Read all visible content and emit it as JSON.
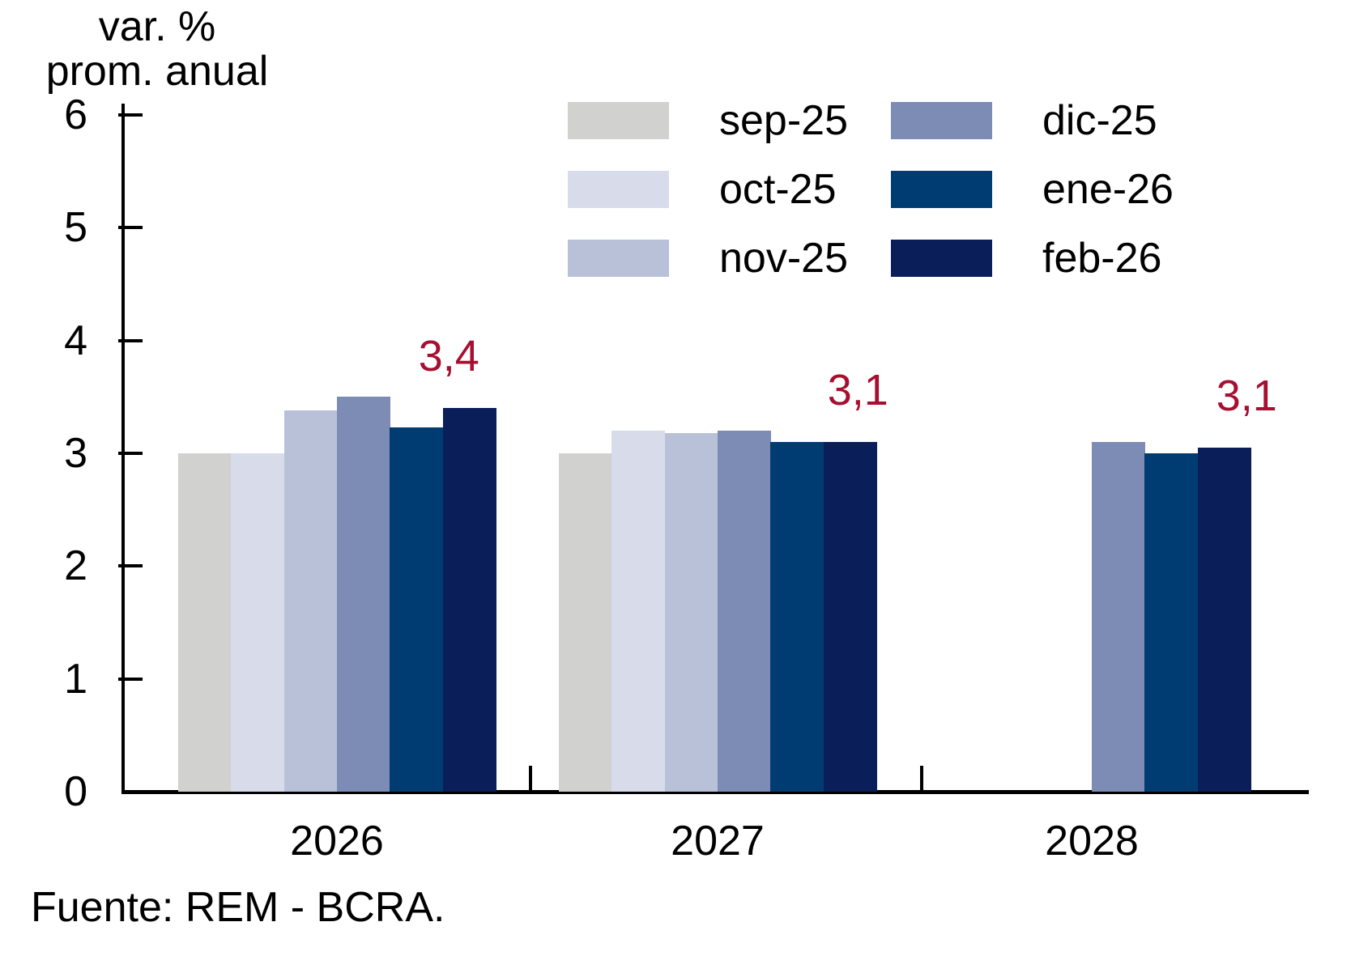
{
  "header": {
    "line1": "var. %",
    "line2": "prom. anual"
  },
  "source_text": "Fuente: REM - BCRA.",
  "colors": {
    "axis": "#000000",
    "data_label": "#A60F2F",
    "background": "#FFFFFF"
  },
  "legend": {
    "columns": [
      [
        "sep-25",
        "oct-25",
        "nov-25"
      ],
      [
        "dic-25",
        "ene-26",
        "feb-26"
      ]
    ]
  },
  "chart_data": {
    "type": "bar",
    "title": "",
    "ylabel": "var. % prom. anual",
    "xlabel": "",
    "categories": [
      "2026",
      "2027",
      "2028"
    ],
    "series": [
      {
        "name": "sep-25",
        "color": "#D1D1D0",
        "values": [
          3.0,
          3.0,
          null
        ]
      },
      {
        "name": "oct-25",
        "color": "#D8DBE9",
        "values": [
          3.0,
          3.2,
          null
        ]
      },
      {
        "name": "nov-25",
        "color": "#B9C1D9",
        "values": [
          3.38,
          3.18,
          null
        ]
      },
      {
        "name": "dic-25",
        "color": "#7D8CB5",
        "values": [
          3.5,
          3.2,
          3.1
        ]
      },
      {
        "name": "ene-26",
        "color": "#003C72",
        "values": [
          3.23,
          3.1,
          3.0
        ]
      },
      {
        "name": "feb-26",
        "color": "#0A1E59",
        "values": [
          3.4,
          3.1,
          3.05
        ]
      }
    ],
    "bar_labels": [
      {
        "text": "3,4",
        "series": "feb-26",
        "category": "2026",
        "dx": -25
      },
      {
        "text": "3,1",
        "series": "feb-26",
        "category": "2027",
        "dx": 10
      },
      {
        "text": "3,1",
        "series": "feb-26",
        "category": "2028",
        "dx": 28
      }
    ],
    "label_color": "#A60F2F",
    "ylim": [
      0,
      6
    ],
    "yticks": [
      0,
      1,
      2,
      3,
      4,
      5,
      6
    ],
    "grid": false,
    "legend_position": "top-right"
  }
}
